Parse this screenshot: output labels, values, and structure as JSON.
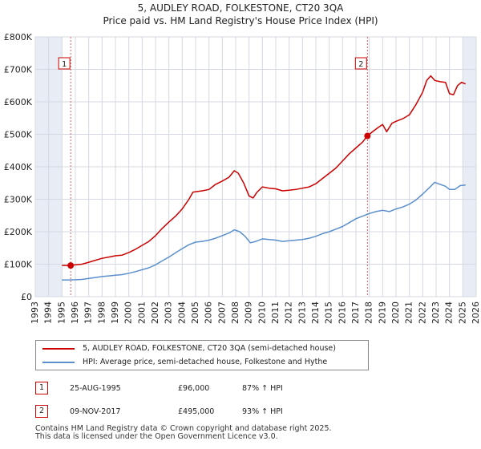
{
  "title": "5, AUDLEY ROAD, FOLKESTONE, CT20 3QA",
  "subtitle": "Price paid vs. HM Land Registry's House Price Index (HPI)",
  "colors": {
    "property": "#cc0000",
    "hpi": "#5b8fcc",
    "shade": "#e7ecf5",
    "grid": "#d4d8e2",
    "background": "#ffffff"
  },
  "legend": {
    "property": "5, AUDLEY ROAD, FOLKESTONE, CT20 3QA (semi-detached house)",
    "hpi": "HPI: Average price, semi-detached house, Folkestone and Hythe"
  },
  "transactions": [
    {
      "num": "1",
      "date": "25-AUG-1995",
      "price": "£96,000",
      "hpi": "87% ↑ HPI"
    },
    {
      "num": "2",
      "date": "09-NOV-2017",
      "price": "£495,000",
      "hpi": "93% ↑ HPI"
    }
  ],
  "footer": [
    "Contains HM Land Registry data © Crown copyright and database right 2025.",
    "This data is licensed under the Open Government Licence v3.0."
  ],
  "chart_data": {
    "type": "line",
    "title": "5, AUDLEY ROAD, FOLKESTONE, CT20 3QA",
    "subtitle": "Price paid vs. HM Land Registry's House Price Index (HPI)",
    "xlim": [
      1993,
      2026
    ],
    "ylim": [
      0,
      800000
    ],
    "xticks": [
      1993,
      1994,
      1995,
      1996,
      1997,
      1998,
      1999,
      2000,
      2001,
      2002,
      2003,
      2004,
      2005,
      2006,
      2007,
      2008,
      2009,
      2010,
      2011,
      2012,
      2013,
      2014,
      2015,
      2016,
      2017,
      2018,
      2019,
      2020,
      2021,
      2022,
      2023,
      2024,
      2025,
      2026
    ],
    "yticks": [
      {
        "value": 0,
        "label": "£0"
      },
      {
        "value": 100000,
        "label": "£100K"
      },
      {
        "value": 200000,
        "label": "£200K"
      },
      {
        "value": 300000,
        "label": "£300K"
      },
      {
        "value": 400000,
        "label": "£400K"
      },
      {
        "value": 500000,
        "label": "£500K"
      },
      {
        "value": 600000,
        "label": "£600K"
      },
      {
        "value": 700000,
        "label": "£700K"
      },
      {
        "value": 800000,
        "label": "£800K"
      }
    ],
    "grid": true,
    "shaded_ranges": [
      [
        1993,
        1995
      ],
      [
        2025,
        2026
      ]
    ],
    "markers": [
      {
        "label": "1",
        "x": 1995.65,
        "y": 96000
      },
      {
        "label": "2",
        "x": 2017.86,
        "y": 495000
      }
    ],
    "series": [
      {
        "name": "5, AUDLEY ROAD, FOLKESTONE, CT20 3QA (semi-detached house)",
        "color": "#cc0000",
        "points": [
          [
            1995.0,
            96000
          ],
          [
            1995.65,
            96000
          ],
          [
            1996.0,
            98000
          ],
          [
            1996.5,
            100000
          ],
          [
            1997.0,
            106000
          ],
          [
            1997.5,
            112000
          ],
          [
            1998.0,
            118000
          ],
          [
            1998.5,
            122000
          ],
          [
            1999.0,
            126000
          ],
          [
            1999.5,
            128000
          ],
          [
            2000.0,
            136000
          ],
          [
            2000.5,
            146000
          ],
          [
            2001.0,
            158000
          ],
          [
            2001.5,
            170000
          ],
          [
            2002.0,
            188000
          ],
          [
            2002.5,
            210000
          ],
          [
            2003.0,
            230000
          ],
          [
            2003.5,
            248000
          ],
          [
            2004.0,
            270000
          ],
          [
            2004.5,
            300000
          ],
          [
            2004.8,
            322000
          ],
          [
            2005.5,
            326000
          ],
          [
            2006.0,
            330000
          ],
          [
            2006.5,
            346000
          ],
          [
            2007.0,
            356000
          ],
          [
            2007.5,
            368000
          ],
          [
            2007.9,
            388000
          ],
          [
            2008.2,
            380000
          ],
          [
            2008.6,
            350000
          ],
          [
            2009.0,
            310000
          ],
          [
            2009.3,
            304000
          ],
          [
            2009.6,
            322000
          ],
          [
            2010.0,
            338000
          ],
          [
            2010.5,
            334000
          ],
          [
            2011.0,
            332000
          ],
          [
            2011.5,
            326000
          ],
          [
            2012.0,
            328000
          ],
          [
            2012.5,
            330000
          ],
          [
            2013.0,
            334000
          ],
          [
            2013.5,
            338000
          ],
          [
            2014.0,
            348000
          ],
          [
            2014.5,
            364000
          ],
          [
            2015.0,
            380000
          ],
          [
            2015.5,
            396000
          ],
          [
            2016.0,
            418000
          ],
          [
            2016.5,
            440000
          ],
          [
            2017.0,
            458000
          ],
          [
            2017.5,
            476000
          ],
          [
            2017.86,
            495000
          ],
          [
            2018.3,
            510000
          ],
          [
            2018.7,
            522000
          ],
          [
            2019.0,
            530000
          ],
          [
            2019.3,
            508000
          ],
          [
            2019.7,
            534000
          ],
          [
            2020.0,
            540000
          ],
          [
            2020.5,
            548000
          ],
          [
            2021.0,
            560000
          ],
          [
            2021.5,
            592000
          ],
          [
            2022.0,
            630000
          ],
          [
            2022.3,
            666000
          ],
          [
            2022.6,
            680000
          ],
          [
            2022.9,
            666000
          ],
          [
            2023.3,
            662000
          ],
          [
            2023.7,
            660000
          ],
          [
            2024.0,
            625000
          ],
          [
            2024.3,
            622000
          ],
          [
            2024.6,
            650000
          ],
          [
            2024.9,
            660000
          ],
          [
            2025.2,
            655000
          ]
        ]
      },
      {
        "name": "HPI: Average price, semi-detached house, Folkestone and Hythe",
        "color": "#5b8fcc",
        "points": [
          [
            1995.0,
            51000
          ],
          [
            1995.5,
            51500
          ],
          [
            1996.0,
            52000
          ],
          [
            1996.5,
            53000
          ],
          [
            1997.0,
            56000
          ],
          [
            1997.5,
            59000
          ],
          [
            1998.0,
            62000
          ],
          [
            1998.5,
            64000
          ],
          [
            1999.0,
            66000
          ],
          [
            1999.5,
            68000
          ],
          [
            2000.0,
            72000
          ],
          [
            2000.5,
            77000
          ],
          [
            2001.0,
            83000
          ],
          [
            2001.5,
            89000
          ],
          [
            2002.0,
            98000
          ],
          [
            2002.5,
            110000
          ],
          [
            2003.0,
            122000
          ],
          [
            2003.5,
            135000
          ],
          [
            2004.0,
            148000
          ],
          [
            2004.5,
            160000
          ],
          [
            2005.0,
            168000
          ],
          [
            2005.5,
            170000
          ],
          [
            2006.0,
            174000
          ],
          [
            2006.5,
            180000
          ],
          [
            2007.0,
            188000
          ],
          [
            2007.5,
            196000
          ],
          [
            2007.9,
            206000
          ],
          [
            2008.3,
            200000
          ],
          [
            2008.7,
            186000
          ],
          [
            2009.1,
            166000
          ],
          [
            2009.5,
            170000
          ],
          [
            2010.0,
            178000
          ],
          [
            2010.5,
            176000
          ],
          [
            2011.0,
            174000
          ],
          [
            2011.5,
            170000
          ],
          [
            2012.0,
            172000
          ],
          [
            2012.5,
            174000
          ],
          [
            2013.0,
            176000
          ],
          [
            2013.5,
            180000
          ],
          [
            2014.0,
            186000
          ],
          [
            2014.5,
            194000
          ],
          [
            2015.0,
            200000
          ],
          [
            2015.5,
            208000
          ],
          [
            2016.0,
            216000
          ],
          [
            2016.5,
            228000
          ],
          [
            2017.0,
            240000
          ],
          [
            2017.5,
            248000
          ],
          [
            2018.0,
            256000
          ],
          [
            2018.5,
            262000
          ],
          [
            2019.0,
            266000
          ],
          [
            2019.5,
            262000
          ],
          [
            2020.0,
            270000
          ],
          [
            2020.5,
            276000
          ],
          [
            2021.0,
            285000
          ],
          [
            2021.5,
            298000
          ],
          [
            2022.0,
            316000
          ],
          [
            2022.5,
            336000
          ],
          [
            2022.9,
            352000
          ],
          [
            2023.3,
            346000
          ],
          [
            2023.7,
            340000
          ],
          [
            2024.0,
            330000
          ],
          [
            2024.4,
            330000
          ],
          [
            2024.8,
            342000
          ],
          [
            2025.2,
            344000
          ]
        ]
      }
    ]
  }
}
